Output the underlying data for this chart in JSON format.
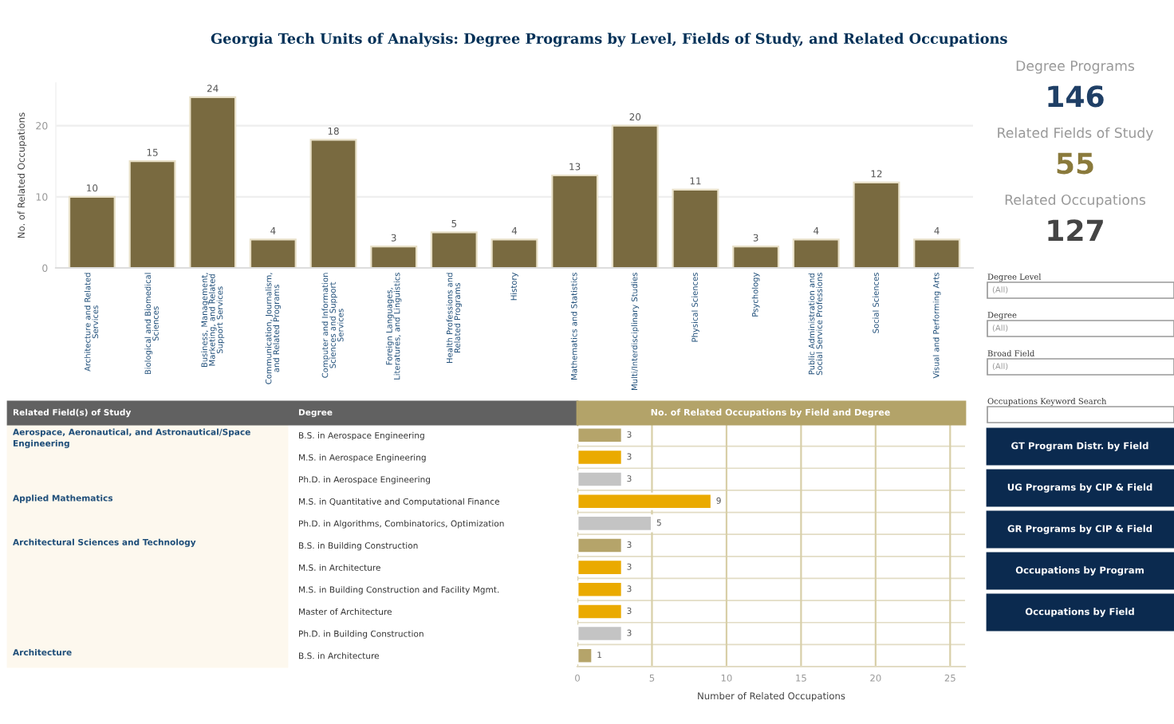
{
  "chart_data": [
    {
      "type": "bar",
      "title": "Georgia Tech Units of Analysis: Degree Programs by Level, Fields of Study, and Related Occupations",
      "ylabel": "No. of Related Occupations",
      "categories": [
        "Architecture and Related\nServices",
        "Biological and Biomedical\nSciences",
        "Business, Management,\nMarketing, and Related\nSupport Services",
        "Communication, Journalism,\nand Related Programs",
        "Computer and Information\nSciences and Support\nServices",
        "Foreign Languages,\nLiteratures, and Linguistics",
        "Health Professions and\nRelated Programs",
        "History",
        "Mathematics and Statistics",
        "Multi/Interdisciplinary Studies",
        "Physical Sciences",
        "Psychology",
        "Public Administration and\nSocial Service Professions",
        "Social Sciences",
        "Visual and Performing Arts"
      ],
      "values": [
        10,
        15,
        24,
        4,
        18,
        3,
        5,
        4,
        13,
        20,
        11,
        3,
        4,
        12,
        4
      ],
      "color": "#826f37",
      "ylim": [
        0,
        26
      ],
      "yticks": [
        0,
        10,
        20
      ],
      "grid": "y",
      "data_labels": true
    },
    {
      "type": "bar",
      "orientation": "horizontal",
      "title": "No. of Related Occupations by Field and Degree",
      "xlabel": "Number of Related Occupations",
      "categories": [
        "B.S. in Aerospace Engineering",
        "M.S. in Aerospace Engineering",
        "Ph.D. in Aerospace Engineering",
        "M.S. in Quantitative and Computational Finance",
        "Ph.D. in Algorithms, Combinatorics, Optimization",
        "B.S. in Building Construction",
        "M.S. in Architecture",
        "M.S. in Building Construction and Facility Mgmt.",
        "Master of Architecture",
        "Ph.D. in Building Construction",
        "B.S. in Architecture"
      ],
      "values": [
        3,
        3,
        3,
        9,
        5,
        3,
        3,
        3,
        3,
        3,
        1
      ],
      "colors": [
        "#b5a46a",
        "#eaaa00",
        "#c4c4c4",
        "#eaaa00",
        "#c4c4c4",
        "#b5a46a",
        "#eaaa00",
        "#eaaa00",
        "#eaaa00",
        "#c4c4c4",
        "#b5a46a"
      ],
      "xlim": [
        0,
        26
      ],
      "xticks": [
        0,
        5,
        10,
        15,
        20,
        25
      ],
      "grid": "x",
      "data_labels": true,
      "annotations": [
        "Related Field(s) of Study",
        "Degree",
        "Aerospace, Aeronautical, and Astronautical/Space\nEngineering",
        "Applied Mathematics",
        "Architectural Sciences and Technology",
        "Architecture"
      ]
    },
    {
      "type": "other",
      "annotations": [
        "Degree Programs",
        "146",
        "Related Fields of Study",
        "55",
        "Related Occupations",
        "127",
        "Degree Level",
        "(All)",
        "Degree",
        "(All)",
        "Broad Field",
        "(All)",
        "Occupations Keyword Search",
        "GT Program Distr. by Field",
        "UG Programs by CIP & Field",
        "GR Programs by CIP & Field",
        "Occupations by Program",
        "Occupations by Field"
      ]
    }
  ]
}
